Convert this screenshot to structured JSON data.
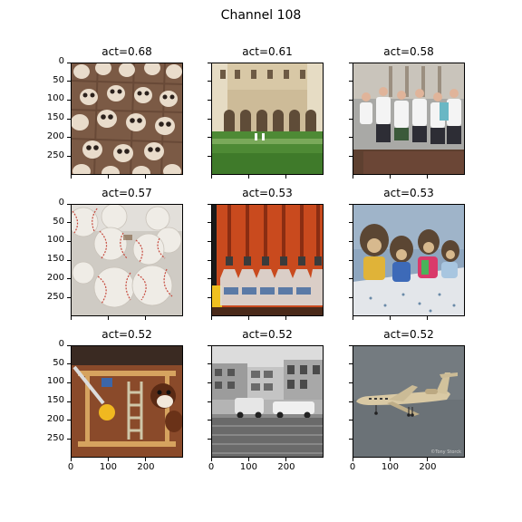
{
  "figure": {
    "title": "Channel 108"
  },
  "axes": {
    "ticks": [
      0,
      50,
      100,
      150,
      200,
      250
    ],
    "xticks": [
      0,
      100,
      200
    ],
    "image_size": 299
  },
  "panels": [
    {
      "title": "act=0.68",
      "activation": 0.68,
      "subject": "panda-face-cookies-on-tray",
      "colors": [
        "#7b5a45",
        "#a8826a"
      ]
    },
    {
      "title": "act=0.61",
      "activation": 0.61,
      "subject": "courtyard-with-arches-and-garden",
      "colors": [
        "#cdbb98",
        "#4e8a35"
      ]
    },
    {
      "title": "act=0.58",
      "activation": 0.58,
      "subject": "crowd-in-white-jerseys",
      "colors": [
        "#a9a9a6",
        "#5e4030"
      ]
    },
    {
      "title": "act=0.57",
      "activation": 0.57,
      "subject": "pile-of-baseballs",
      "colors": [
        "#ebe8e2",
        "#c6493d"
      ]
    },
    {
      "title": "act=0.53",
      "activation": 0.53,
      "subject": "hanging-bottles-orange-wall",
      "colors": [
        "#c94a1e",
        "#dcdad6"
      ]
    },
    {
      "title": "act=0.53",
      "activation": 0.53,
      "subject": "plush-hedgehog-toys",
      "colors": [
        "#8ea6bf",
        "#5b4633"
      ]
    },
    {
      "title": "act=0.52",
      "activation": 0.52,
      "subject": "wooden-toy-with-squirrel-plush",
      "colors": [
        "#7a3e24",
        "#d6a35f"
      ]
    },
    {
      "title": "act=0.52",
      "activation": 0.52,
      "subject": "black-and-white-street-with-cars",
      "colors": [
        "#8a8a8a",
        "#dcdcdc"
      ]
    },
    {
      "title": "act=0.52",
      "activation": 0.52,
      "subject": "private-jet-in-grey-sky",
      "colors": [
        "#6b7277",
        "#d9c9a4"
      ],
      "credit": "©Tony Storck"
    }
  ],
  "chart_data": {
    "type": "image-grid",
    "title": "Channel 108",
    "rows": 3,
    "cols": 3,
    "panel_titles": [
      "act=0.68",
      "act=0.61",
      "act=0.58",
      "act=0.57",
      "act=0.53",
      "act=0.53",
      "act=0.52",
      "act=0.52",
      "act=0.52"
    ],
    "activations": [
      0.68,
      0.61,
      0.58,
      0.57,
      0.53,
      0.53,
      0.52,
      0.52,
      0.52
    ],
    "xlim": [
      0,
      299
    ],
    "ylim": [
      299,
      0
    ],
    "yticks": [
      0,
      50,
      100,
      150,
      200,
      250
    ],
    "xticks": [
      0,
      100,
      200
    ]
  }
}
